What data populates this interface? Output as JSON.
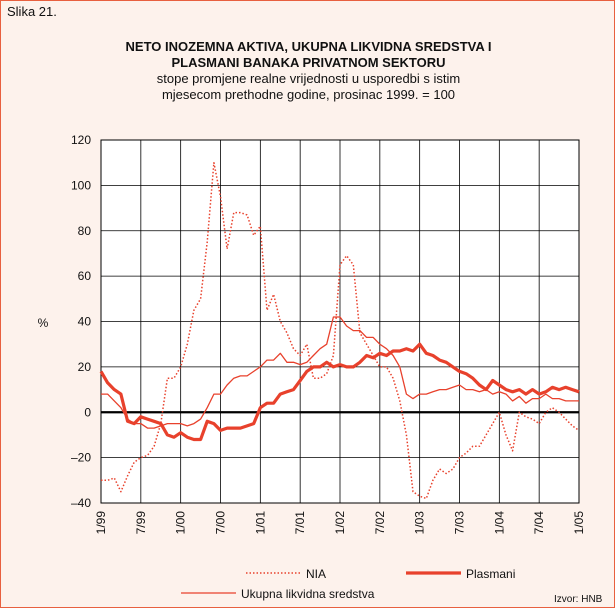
{
  "figure_label": "Slika 21.",
  "chart_data": {
    "type": "line",
    "title": "NETO INOZEMNA AKTIVA, UKUPNA LIKVIDNA SREDSTVA I PLASMANI BANAKA PRIVATNOM SEKTORU",
    "subtitle": "stope promjene realne vrijednosti u usporedbi s istim mjesecom prethodne godine, prosinac 1999. = 100",
    "y_label": "%",
    "source": "Izvor: HNB",
    "categories": [
      "1/99",
      null,
      null,
      null,
      null,
      null,
      "7/99",
      null,
      null,
      null,
      null,
      null,
      "1/00",
      null,
      null,
      null,
      null,
      null,
      "7/00",
      null,
      null,
      null,
      null,
      null,
      "1/01",
      null,
      null,
      null,
      null,
      null,
      "7/01",
      null,
      null,
      null,
      null,
      null,
      "1/02",
      null,
      null,
      null,
      null,
      null,
      "7/02",
      null,
      null,
      null,
      null,
      null,
      "1/03",
      null,
      null,
      null,
      null,
      null,
      "7/03",
      null,
      null,
      null,
      null,
      null,
      "1/04",
      null,
      null,
      null,
      null,
      null,
      "7/04",
      null,
      null,
      null,
      null,
      null,
      "1/05"
    ],
    "ylim": [
      -40,
      120
    ],
    "yticks": [
      {
        "value": -40,
        "label": "–40"
      },
      {
        "value": -20,
        "label": "–20"
      },
      0,
      20,
      40,
      60,
      80,
      100,
      120
    ],
    "grid": true,
    "series": [
      {
        "name": "NIA",
        "color": "#e8412c",
        "line_style": "dotted",
        "line_width": 1.5,
        "values": [
          -30,
          -30,
          -29,
          -35,
          -28,
          -22,
          -20,
          -19,
          -15,
          -5,
          15,
          15,
          20,
          30,
          45,
          50,
          75,
          110,
          95,
          72,
          88,
          88,
          87,
          78,
          82,
          45,
          52,
          40,
          35,
          28,
          25,
          30,
          15,
          15,
          17,
          25,
          65,
          69,
          65,
          35,
          30,
          25,
          20,
          20,
          15,
          5,
          -10,
          -35,
          -37,
          -38,
          -30,
          -25,
          -27,
          -25,
          -20,
          -18,
          -15,
          -15,
          -10,
          -5,
          0,
          -10,
          -17,
          0,
          -2,
          -3,
          -5,
          0,
          2,
          0,
          -3,
          -6,
          -8
        ]
      },
      {
        "name": "Plasmani",
        "color": "#e8412c",
        "line_style": "solid",
        "line_width": 3.2,
        "values": [
          18,
          13,
          10,
          8,
          -4,
          -5,
          -2,
          -3,
          -4,
          -5,
          -10,
          -11,
          -9,
          -11,
          -12,
          -12,
          -4,
          -5,
          -8,
          -7,
          -7,
          -7,
          -6,
          -5,
          2,
          4,
          4,
          8,
          9,
          10,
          14,
          18,
          20,
          20,
          22,
          20,
          21,
          20,
          20,
          22,
          25,
          24,
          26,
          25,
          27,
          27,
          28,
          27,
          30,
          26,
          25,
          23,
          22,
          20,
          18,
          17,
          15,
          12,
          10,
          14,
          12,
          10,
          9,
          10,
          8,
          10,
          8,
          9,
          11,
          10,
          11,
          10,
          9
        ]
      },
      {
        "name": "Ukupna likvidna sredstva",
        "color": "#e8412c",
        "line_style": "solid",
        "line_width": 1.3,
        "values": [
          8,
          8,
          5,
          2,
          -3,
          -5,
          -5,
          -7,
          -7,
          -6,
          -5,
          -5,
          -5,
          -6,
          -5,
          -3,
          2,
          8,
          8,
          12,
          15,
          16,
          16,
          18,
          20,
          23,
          23,
          26,
          22,
          22,
          21,
          22,
          25,
          28,
          30,
          42,
          42,
          38,
          36,
          36,
          33,
          33,
          30,
          28,
          25,
          20,
          8,
          6,
          8,
          8,
          9,
          10,
          10,
          11,
          12,
          10,
          10,
          9,
          10,
          8,
          9,
          8,
          5,
          7,
          4,
          6,
          6,
          8,
          6,
          6,
          5,
          5,
          5
        ]
      }
    ]
  }
}
